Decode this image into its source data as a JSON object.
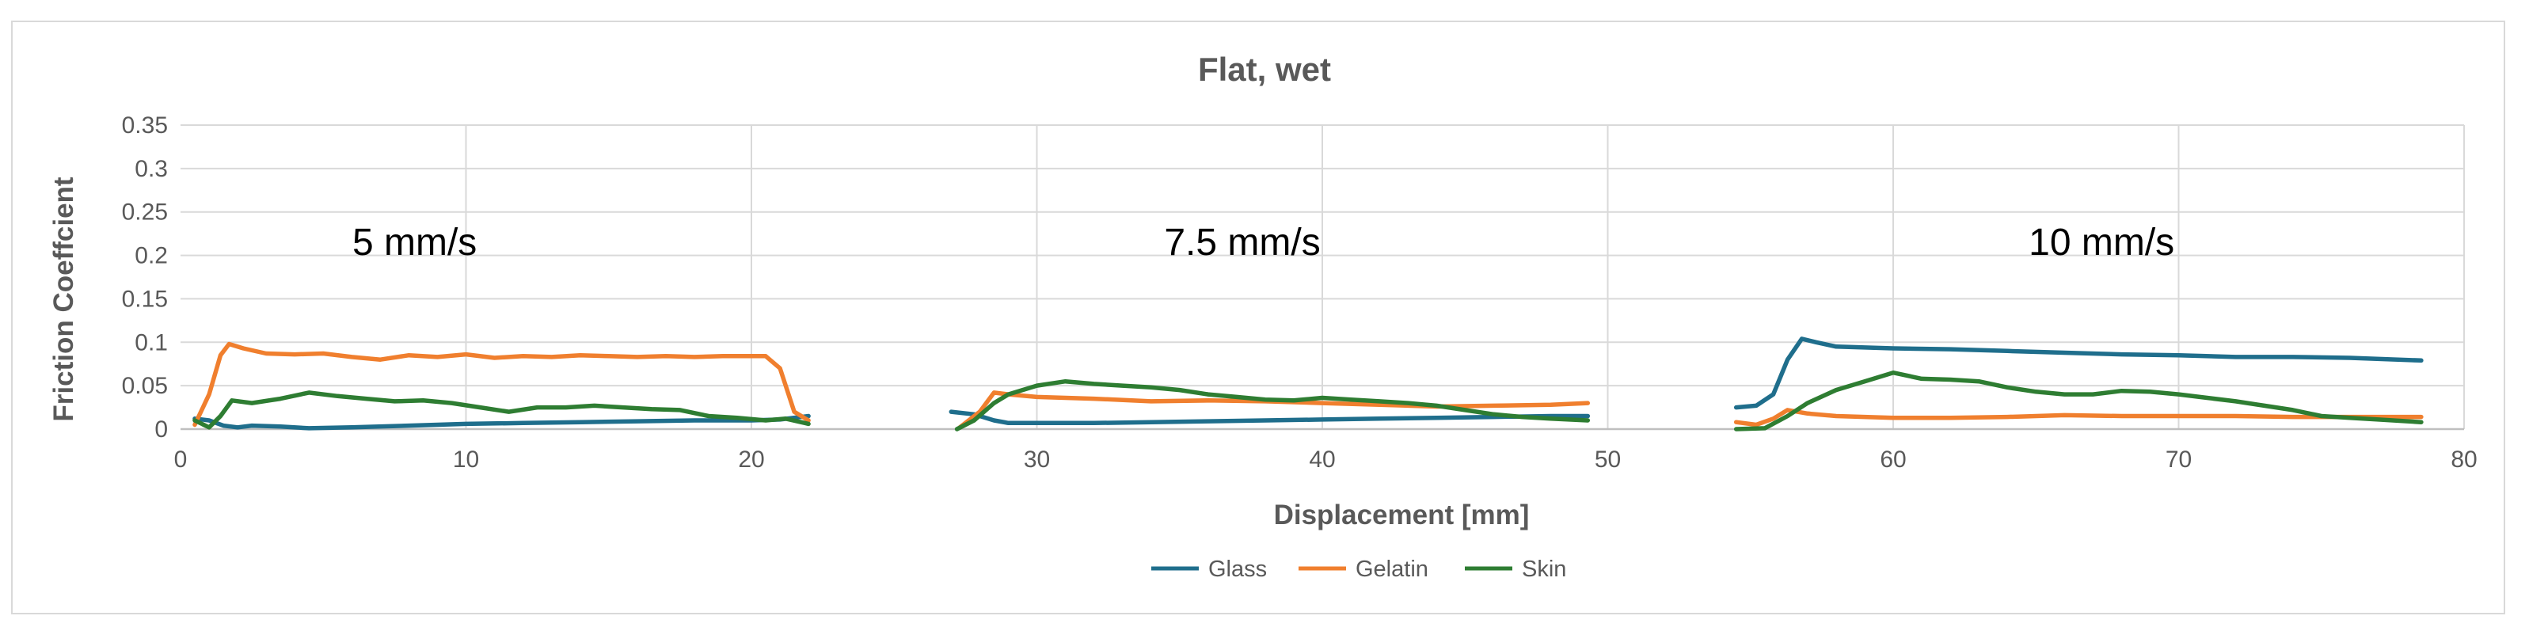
{
  "chart_data": {
    "type": "line",
    "title": "Flat, wet",
    "xlabel": "Displacement [mm]",
    "ylabel": "Friction Coeffcient",
    "xlim": [
      0,
      80
    ],
    "ylim": [
      0,
      0.35
    ],
    "xticks": [
      0,
      10,
      20,
      30,
      40,
      50,
      60,
      70,
      80
    ],
    "yticks": [
      0,
      0.05,
      0.1,
      0.15,
      0.2,
      0.25,
      0.3,
      0.35
    ],
    "xtick_labels": [
      "0",
      "10",
      "20",
      "30",
      "40",
      "50",
      "60",
      "70",
      "80"
    ],
    "ytick_labels": [
      "0",
      "0.05",
      "0.1",
      "0.15",
      "0.2",
      "0.25",
      "0.3",
      "0.35"
    ],
    "grid": true,
    "legend_position": "bottom",
    "annotations": [
      {
        "text": "5 mm/s",
        "x": 8.2,
        "y": 0.215
      },
      {
        "text": "7.5 mm/s",
        "x": 37.2,
        "y": 0.215
      },
      {
        "text": "10 mm/s",
        "x": 67.3,
        "y": 0.215
      }
    ],
    "series": [
      {
        "name": "Glass",
        "color": "#1f6e8c",
        "segments": [
          [
            [
              0.5,
              0.012
            ],
            [
              1.0,
              0.01
            ],
            [
              1.5,
              0.004
            ],
            [
              2.0,
              0.002
            ],
            [
              2.5,
              0.004
            ],
            [
              3.5,
              0.003
            ],
            [
              4.5,
              0.001
            ],
            [
              6,
              0.002
            ],
            [
              8,
              0.004
            ],
            [
              10,
              0.006
            ],
            [
              12,
              0.007
            ],
            [
              14,
              0.008
            ],
            [
              16,
              0.009
            ],
            [
              18,
              0.01
            ],
            [
              20,
              0.01
            ],
            [
              21,
              0.011
            ],
            [
              22,
              0.015
            ]
          ],
          [
            [
              27,
              0.02
            ],
            [
              27.8,
              0.017
            ],
            [
              28.5,
              0.01
            ],
            [
              29,
              0.007
            ],
            [
              30,
              0.007
            ],
            [
              32,
              0.007
            ],
            [
              34,
              0.008
            ],
            [
              36,
              0.009
            ],
            [
              38,
              0.01
            ],
            [
              40,
              0.011
            ],
            [
              42,
              0.012
            ],
            [
              44,
              0.013
            ],
            [
              46,
              0.014
            ],
            [
              48,
              0.015
            ],
            [
              49.3,
              0.015
            ]
          ],
          [
            [
              54.5,
              0.025
            ],
            [
              55.2,
              0.027
            ],
            [
              55.8,
              0.04
            ],
            [
              56.3,
              0.08
            ],
            [
              56.8,
              0.104
            ],
            [
              57.3,
              0.1
            ],
            [
              58,
              0.095
            ],
            [
              60,
              0.093
            ],
            [
              62,
              0.092
            ],
            [
              64,
              0.09
            ],
            [
              66,
              0.088
            ],
            [
              68,
              0.086
            ],
            [
              70,
              0.085
            ],
            [
              72,
              0.083
            ],
            [
              74,
              0.083
            ],
            [
              76,
              0.082
            ],
            [
              78.5,
              0.079
            ]
          ]
        ]
      },
      {
        "name": "Gelatin",
        "color": "#f07f2e",
        "segments": [
          [
            [
              0.5,
              0.005
            ],
            [
              1.0,
              0.04
            ],
            [
              1.4,
              0.085
            ],
            [
              1.7,
              0.098
            ],
            [
              2.2,
              0.093
            ],
            [
              3,
              0.087
            ],
            [
              4,
              0.086
            ],
            [
              5,
              0.087
            ],
            [
              6,
              0.083
            ],
            [
              7,
              0.08
            ],
            [
              8,
              0.085
            ],
            [
              9,
              0.083
            ],
            [
              10,
              0.086
            ],
            [
              11,
              0.082
            ],
            [
              12,
              0.084
            ],
            [
              13,
              0.083
            ],
            [
              14,
              0.085
            ],
            [
              15,
              0.084
            ],
            [
              16,
              0.083
            ],
            [
              17,
              0.084
            ],
            [
              18,
              0.083
            ],
            [
              19,
              0.084
            ],
            [
              20.5,
              0.084
            ],
            [
              21.0,
              0.07
            ],
            [
              21.5,
              0.02
            ],
            [
              22,
              0.01
            ]
          ],
          [
            [
              27.3,
              0.002
            ],
            [
              28.0,
              0.02
            ],
            [
              28.5,
              0.042
            ],
            [
              29,
              0.04
            ],
            [
              30,
              0.037
            ],
            [
              32,
              0.035
            ],
            [
              34,
              0.032
            ],
            [
              36,
              0.033
            ],
            [
              38,
              0.032
            ],
            [
              40,
              0.03
            ],
            [
              42,
              0.028
            ],
            [
              44,
              0.026
            ],
            [
              46,
              0.027
            ],
            [
              48,
              0.028
            ],
            [
              49.3,
              0.03
            ]
          ],
          [
            [
              54.5,
              0.008
            ],
            [
              55.2,
              0.005
            ],
            [
              55.8,
              0.012
            ],
            [
              56.3,
              0.022
            ],
            [
              57,
              0.018
            ],
            [
              58,
              0.015
            ],
            [
              60,
              0.013
            ],
            [
              62,
              0.013
            ],
            [
              64,
              0.014
            ],
            [
              66,
              0.016
            ],
            [
              68,
              0.015
            ],
            [
              70,
              0.015
            ],
            [
              72,
              0.015
            ],
            [
              74,
              0.014
            ],
            [
              76,
              0.014
            ],
            [
              78.5,
              0.014
            ]
          ]
        ]
      },
      {
        "name": "Skin",
        "color": "#2e7d32",
        "segments": [
          [
            [
              0.5,
              0.01
            ],
            [
              1.0,
              0.002
            ],
            [
              1.4,
              0.015
            ],
            [
              1.8,
              0.033
            ],
            [
              2.5,
              0.03
            ],
            [
              3.5,
              0.035
            ],
            [
              4.5,
              0.042
            ],
            [
              5.5,
              0.038
            ],
            [
              6.5,
              0.035
            ],
            [
              7.5,
              0.032
            ],
            [
              8.5,
              0.033
            ],
            [
              9.5,
              0.03
            ],
            [
              10.5,
              0.025
            ],
            [
              11.5,
              0.02
            ],
            [
              12.5,
              0.025
            ],
            [
              13.5,
              0.025
            ],
            [
              14.5,
              0.027
            ],
            [
              15.5,
              0.025
            ],
            [
              16.5,
              0.023
            ],
            [
              17.5,
              0.022
            ],
            [
              18.5,
              0.015
            ],
            [
              19.5,
              0.013
            ],
            [
              20.5,
              0.01
            ],
            [
              21.2,
              0.012
            ],
            [
              22,
              0.006
            ]
          ],
          [
            [
              27.2,
              0.0
            ],
            [
              27.8,
              0.01
            ],
            [
              28.5,
              0.03
            ],
            [
              29,
              0.04
            ],
            [
              30,
              0.05
            ],
            [
              31,
              0.055
            ],
            [
              32,
              0.052
            ],
            [
              33,
              0.05
            ],
            [
              34,
              0.048
            ],
            [
              35,
              0.045
            ],
            [
              36,
              0.04
            ],
            [
              37,
              0.037
            ],
            [
              38,
              0.034
            ],
            [
              39,
              0.033
            ],
            [
              40,
              0.036
            ],
            [
              41,
              0.034
            ],
            [
              42,
              0.032
            ],
            [
              43,
              0.03
            ],
            [
              44,
              0.027
            ],
            [
              45,
              0.022
            ],
            [
              46,
              0.017
            ],
            [
              47,
              0.014
            ],
            [
              48,
              0.012
            ],
            [
              49.3,
              0.01
            ]
          ],
          [
            [
              54.5,
              0.0
            ],
            [
              55.5,
              0.001
            ],
            [
              56.3,
              0.015
            ],
            [
              57,
              0.03
            ],
            [
              58,
              0.045
            ],
            [
              59,
              0.055
            ],
            [
              60,
              0.065
            ],
            [
              61,
              0.058
            ],
            [
              62,
              0.057
            ],
            [
              63,
              0.055
            ],
            [
              64,
              0.048
            ],
            [
              65,
              0.043
            ],
            [
              66,
              0.04
            ],
            [
              67,
              0.04
            ],
            [
              68,
              0.044
            ],
            [
              69,
              0.043
            ],
            [
              70,
              0.04
            ],
            [
              71,
              0.036
            ],
            [
              72,
              0.032
            ],
            [
              73,
              0.027
            ],
            [
              74,
              0.022
            ],
            [
              75,
              0.015
            ],
            [
              76,
              0.013
            ],
            [
              77,
              0.011
            ],
            [
              78.5,
              0.008
            ]
          ]
        ]
      }
    ]
  }
}
